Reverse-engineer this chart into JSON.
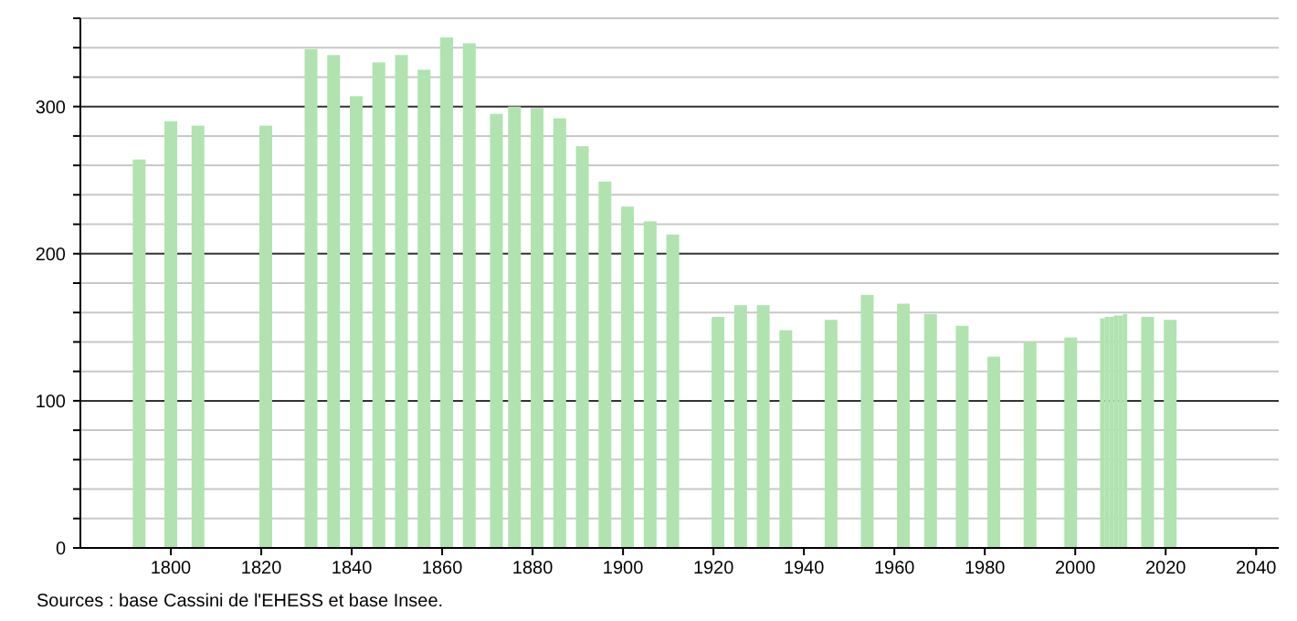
{
  "chart_data": {
    "type": "bar",
    "x": [
      1793,
      1800,
      1806,
      1821,
      1831,
      1836,
      1841,
      1846,
      1851,
      1856,
      1861,
      1866,
      1872,
      1876,
      1881,
      1886,
      1891,
      1896,
      1901,
      1906,
      1911,
      1921,
      1926,
      1931,
      1936,
      1946,
      1954,
      1962,
      1968,
      1975,
      1982,
      1990,
      1999,
      2006,
      2007,
      2008,
      2009,
      2010,
      2011,
      2016,
      2021
    ],
    "values": [
      264,
      290,
      287,
      287,
      339,
      335,
      307,
      330,
      335,
      325,
      347,
      343,
      295,
      300,
      299,
      292,
      273,
      249,
      232,
      222,
      213,
      157,
      165,
      165,
      148,
      155,
      172,
      166,
      159,
      151,
      130,
      140,
      143,
      156,
      157,
      157,
      158,
      158,
      159,
      157,
      155
    ],
    "color": "#b0e3b0",
    "xlim": [
      1780,
      2045
    ],
    "xticks": [
      1800,
      1820,
      1840,
      1860,
      1880,
      1900,
      1920,
      1940,
      1960,
      1980,
      2000,
      2020,
      2040
    ],
    "ylim": [
      0,
      360
    ],
    "yticks": [
      0,
      {
        "value": 20,
        "label": null
      },
      {
        "value": 40,
        "label": null
      },
      {
        "value": 60,
        "label": null
      },
      {
        "value": 80,
        "label": null
      },
      100,
      {
        "value": 120,
        "label": null
      },
      {
        "value": 140,
        "label": null
      },
      {
        "value": 160,
        "label": null
      },
      {
        "value": 180,
        "label": null
      },
      200,
      {
        "value": 220,
        "label": null
      },
      {
        "value": 240,
        "label": null
      },
      {
        "value": 260,
        "label": null
      },
      {
        "value": 280,
        "label": null
      },
      300,
      {
        "value": 320,
        "label": null
      },
      {
        "value": 340,
        "label": null
      },
      {
        "value": 360,
        "label": null
      }
    ],
    "grid": "y",
    "annotations": [
      "Sources : base Cassini de l'EHESS et base Insee."
    ]
  }
}
